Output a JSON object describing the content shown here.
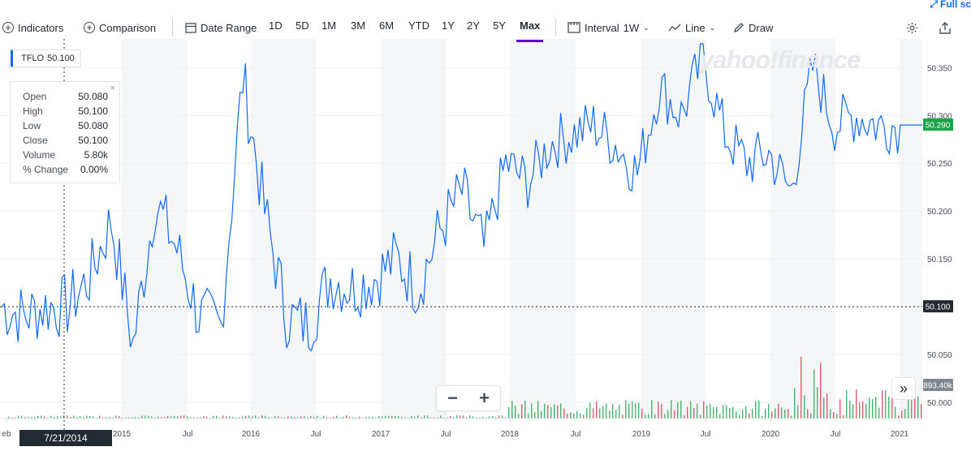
{
  "toolbar": {
    "indicators": "Indicators",
    "comparison": "Comparison",
    "date_range": "Date Range",
    "ranges": [
      "1D",
      "5D",
      "1M",
      "3M",
      "6M",
      "YTD",
      "1Y",
      "2Y",
      "5Y",
      "Max"
    ],
    "active_range": "Max",
    "interval_label": "Interval",
    "interval_value": "1W",
    "chart_type": "Line",
    "draw": "Draw",
    "fullscreen": "Full sc"
  },
  "ticker": {
    "symbol": "TFLO",
    "price": "50.100"
  },
  "ohlc": {
    "rows": [
      {
        "label": "Open",
        "value": "50.080"
      },
      {
        "label": "High",
        "value": "50.100"
      },
      {
        "label": "Low",
        "value": "50.080"
      },
      {
        "label": "Close",
        "value": "50.100"
      },
      {
        "label": "Volume",
        "value": "5.80k"
      },
      {
        "label": "% Change",
        "value": "0.00%"
      }
    ],
    "close_symbol": "×"
  },
  "watermark": "yahoo!finance",
  "crosshair_date": "7/21/2014",
  "zoom": {
    "minus": "−",
    "plus": "+"
  },
  "collapse_symbol": "»",
  "colors": {
    "line": "#0f69ff",
    "accent": "#6001d2",
    "last_price_badge": "#1ba34a",
    "crosshair_badge": "#232a31",
    "volume_badge": "#7e8791",
    "volume_up": "#1ba34a",
    "volume_down": "#dc3545"
  },
  "chart_data": {
    "type": "line",
    "series": [
      {
        "name": "TFLO",
        "x": [
          "2014-02",
          "2014-04",
          "2014-06",
          "2014-08",
          "2014-10",
          "2014-12",
          "2015-02",
          "2015-04",
          "2015-06",
          "2015-08",
          "2015-10",
          "2015-12",
          "2016-02",
          "2016-04",
          "2016-06",
          "2016-08",
          "2016-10",
          "2016-12",
          "2017-02",
          "2017-04",
          "2017-06",
          "2017-08",
          "2017-10",
          "2017-12",
          "2018-02",
          "2018-04",
          "2018-06",
          "2018-08",
          "2018-10",
          "2018-12",
          "2019-02",
          "2019-04",
          "2019-06",
          "2019-08",
          "2019-10",
          "2019-12",
          "2020-02",
          "2020-04",
          "2020-06",
          "2020-08",
          "2020-10",
          "2020-12",
          "2021-02"
        ],
        "y": [
          50.1,
          50.09,
          50.1,
          50.1,
          50.13,
          50.19,
          50.06,
          50.21,
          50.16,
          50.09,
          50.08,
          50.34,
          50.2,
          50.09,
          50.08,
          50.13,
          50.12,
          50.13,
          50.15,
          50.12,
          50.18,
          50.22,
          50.16,
          50.25,
          50.23,
          50.27,
          50.28,
          50.29,
          50.27,
          50.24,
          50.33,
          50.3,
          50.36,
          50.28,
          50.25,
          50.26,
          50.22,
          50.35,
          50.29,
          50.3,
          50.29,
          50.29,
          50.29
        ]
      }
    ],
    "x_tick_labels": [
      "eb",
      "2015",
      "Jul",
      "2016",
      "Jul",
      "2017",
      "Jul",
      "2018",
      "Jul",
      "2019",
      "Jul",
      "2020",
      "Jul",
      "2021"
    ],
    "y_tick_labels": [
      "50.350",
      "50.300",
      "50.250",
      "50.200",
      "50.150",
      "50.100",
      "50.050",
      "50.000"
    ],
    "ylim": [
      49.983,
      50.38
    ],
    "last_price": "50.290",
    "crosshair_price": "50.100",
    "volume_label": "893.40k",
    "grid": true
  }
}
